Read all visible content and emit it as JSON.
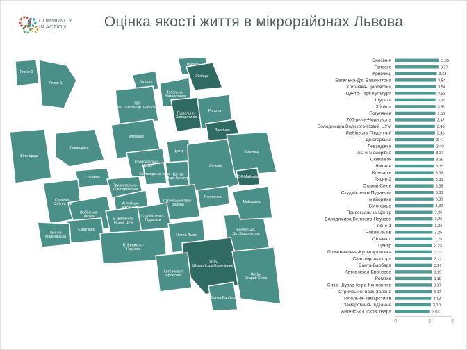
{
  "header": {
    "title": "Оцінка якості життя в мікрорайонах Львова",
    "logo_line1": "COMMUNITY",
    "logo_line2": "IN ACTION"
  },
  "colors": {
    "accent": "#4f9a92",
    "map_fill": "#4a9088",
    "map_dark": "#2f6b63",
    "map_stroke": "#ffffff",
    "bar_color": "#4f9a92"
  },
  "map": {
    "labels": [
      "Рясне 2",
      "Рясне-1",
      "Голоско",
      "Щурата",
      "Збоїща",
      "Топольна-Замарстинів",
      "700-річчя Львова-Пр. Чорновола",
      "Підвальне-Замарстинів",
      "Рогатка",
      "Знесіння",
      "Клепарів",
      "Левандівка",
      "Білогорща",
      "Привокзальна-Центр",
      "Центр",
      "Святоюрська гора",
      "Центр-Парк Культури",
      "Личаків",
      "Кривчиці",
      "Сільмаш",
      "Привокзальна-Кульпарківська",
      "Антейські-Піскові озера",
      "АС-6-Майорівка",
      "Сигнівка-Сріблястий",
      "Стрийський парк-Зелена",
      "Погулянка",
      "Любінська-Пасічна",
      "Студмістечко-Підгаєчки",
      "Новий Львів",
      "Скнилівок",
      "Боберська-Дж. Вашингтона",
      "Майорівка",
      "В. Великого-Новий ЦУМ",
      "Пасічна-Марихівська",
      "В. Великого-Наукова",
      "Сихів-Шувар-Іскра-Коренівник",
      "Автовокзал-Бронсова",
      "Санта-Барбара",
      "Сихів-Старий Сихів"
    ]
  },
  "chart_data": {
    "type": "bar",
    "orientation": "horizontal",
    "title": "",
    "xlabel": "",
    "ylabel": "",
    "xlim": [
      0,
      5
    ],
    "x_ticks": [
      "0",
      "3",
      "5"
    ],
    "grid": false,
    "categories": [
      "Знесіння",
      "Голоско",
      "Кривчиці",
      "Батальна-Дж. Вашингтона",
      "Сигнівка-Сріблястий",
      "Центр-Парк Культури",
      "Щурата",
      "Збоїща",
      "Погулянка",
      "700-річчя-Чорновола",
      "Володимира Великого-Новий ЦУМ",
      "Любінська-Південний",
      "Дністерська",
      "Левандівка",
      "АС-6-Майорівка",
      "Скнилівок",
      "Личаків",
      "Клепарів",
      "Рясне-2",
      "Старий Сихів",
      "Студмістечко-Підгаєчки",
      "Майорівка",
      "Білогорща",
      "Привокзальна-Центр",
      "Володимира Великого-Наукова",
      "Рясне-1",
      "Новий Львів",
      "Сільмаш",
      "Центр",
      "Привокзальна-Кульпарківська",
      "Святоюрська гора",
      "Санта-Барбара",
      "Автовокзал-Бронсова",
      "Рогатка",
      "Сихів-Шувар-Іскра-Коновників",
      "Стрийський парк-Зелена",
      "Топольна-Замарстинів",
      "Замарстинів-Підзамче",
      "Антейські-Піскові озера"
    ],
    "value_labels": [
      "3,85",
      "3,77",
      "3,63",
      "3,54",
      "3,54",
      "3,52",
      "3,51",
      "3,51",
      "3,50",
      "3,47",
      "3,46",
      "3,46",
      "3,41",
      "3,40",
      "3,37",
      "3,36",
      "3,35",
      "3,33",
      "3,33",
      "3,33",
      "3,33",
      "3,33",
      "3,32",
      "3,26",
      "3,26",
      "3,26",
      "3,25",
      "3,25",
      "3,23",
      "3,22",
      "3,22",
      "3,21",
      "3,19",
      "3,18",
      "3,17",
      "3,17",
      "3,13",
      "3,10",
      "3,03"
    ],
    "values": [
      3.85,
      3.77,
      3.63,
      3.54,
      3.54,
      3.52,
      3.51,
      3.51,
      3.5,
      3.47,
      3.46,
      3.46,
      3.41,
      3.4,
      3.37,
      3.36,
      3.35,
      3.33,
      3.33,
      3.33,
      3.33,
      3.33,
      3.32,
      3.26,
      3.26,
      3.26,
      3.25,
      3.25,
      3.23,
      3.22,
      3.22,
      3.21,
      3.19,
      3.18,
      3.17,
      3.17,
      3.13,
      3.1,
      3.03
    ]
  }
}
